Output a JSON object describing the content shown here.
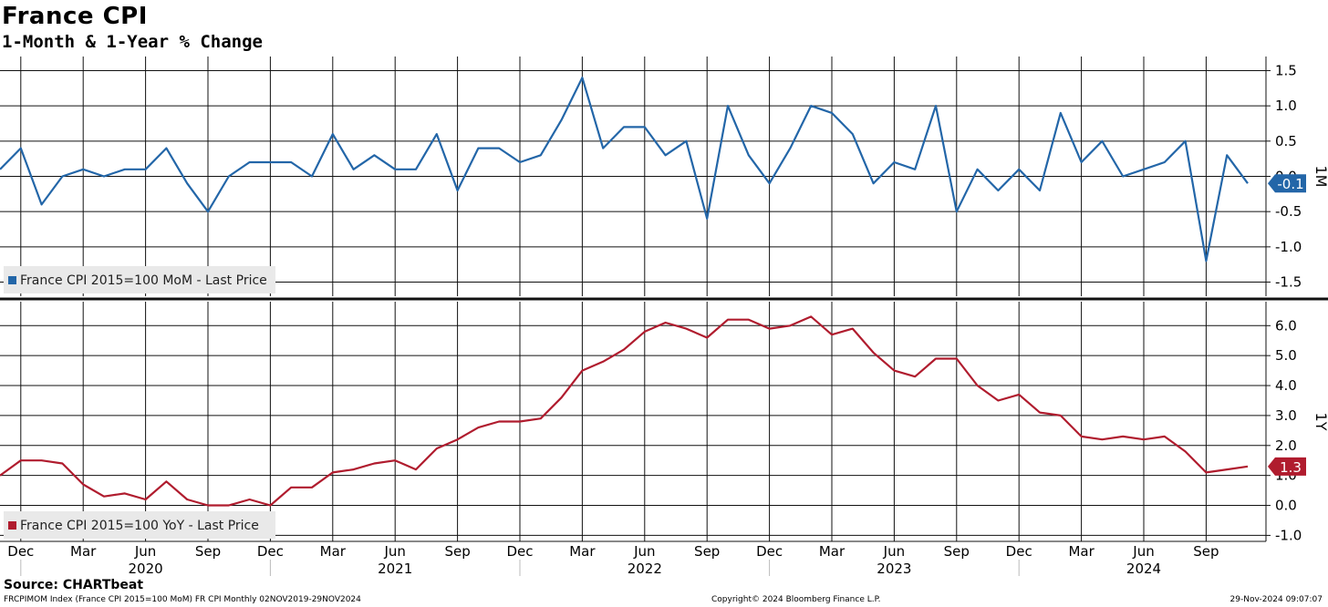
{
  "title": "France CPI",
  "subtitle": "1-Month & 1-Year % Change",
  "chart_data": [
    {
      "type": "line",
      "panel": "top",
      "axis_label": "1M",
      "last_value_label": "-0.1",
      "color": "#2366a8",
      "legend": "France CPI 2015=100 MoM - Last Price",
      "legend_position": "bottom-left",
      "grid": true,
      "ylim": [
        -1.7,
        1.7
      ],
      "yticks": [
        "1.5",
        "1.0",
        "0.5",
        "0.0",
        "-0.5",
        "-1.0",
        "-1.5"
      ],
      "ytick_values": [
        1.5,
        1.0,
        0.5,
        0.0,
        -0.5,
        -1.0,
        -1.5
      ],
      "x_start": "2019-11",
      "values": [
        0.1,
        0.4,
        -0.4,
        0.0,
        0.1,
        0.0,
        0.1,
        0.1,
        0.4,
        -0.1,
        -0.5,
        0.0,
        0.2,
        0.2,
        0.2,
        0.0,
        0.6,
        0.1,
        0.3,
        0.1,
        0.1,
        0.6,
        -0.2,
        0.4,
        0.4,
        0.2,
        0.3,
        0.8,
        1.4,
        0.4,
        0.7,
        0.7,
        0.3,
        0.5,
        -0.6,
        1.0,
        0.3,
        -0.1,
        0.4,
        1.0,
        0.9,
        0.6,
        -0.1,
        0.2,
        0.1,
        1.0,
        -0.5,
        0.1,
        -0.2,
        0.1,
        -0.2,
        0.9,
        0.2,
        0.5,
        0.0,
        0.1,
        0.2,
        0.5,
        -1.2,
        0.3,
        -0.1
      ]
    },
    {
      "type": "line",
      "panel": "bottom",
      "axis_label": "1Y",
      "last_value_label": "1.3",
      "color": "#b01c2e",
      "legend": "France CPI 2015=100 YoY - Last Price",
      "legend_position": "bottom-left",
      "grid": true,
      "ylim": [
        -1.2,
        6.8
      ],
      "yticks": [
        "6.0",
        "5.0",
        "4.0",
        "3.0",
        "2.0",
        "1.0",
        "0.0",
        "-1.0"
      ],
      "ytick_values": [
        6,
        5,
        4,
        3,
        2,
        1,
        0,
        -1
      ],
      "x_start": "2019-11",
      "values": [
        1.0,
        1.5,
        1.5,
        1.4,
        0.7,
        0.3,
        0.4,
        0.2,
        0.8,
        0.2,
        0.0,
        0.0,
        0.2,
        0.0,
        0.6,
        0.6,
        1.1,
        1.2,
        1.4,
        1.5,
        1.2,
        1.9,
        2.2,
        2.6,
        2.8,
        2.8,
        2.9,
        3.6,
        4.5,
        4.8,
        5.2,
        5.8,
        6.1,
        5.9,
        5.6,
        6.2,
        6.2,
        5.9,
        6.0,
        6.3,
        5.7,
        5.9,
        5.1,
        4.5,
        4.3,
        4.9,
        4.9,
        4.0,
        3.5,
        3.7,
        3.1,
        3.0,
        2.3,
        2.2,
        2.3,
        2.2,
        2.3,
        1.8,
        1.1,
        1.2,
        1.3
      ]
    }
  ],
  "x_axis": {
    "month_ticks": [
      {
        "label": "Dec",
        "date": "2019-12"
      },
      {
        "label": "Mar",
        "date": "2020-03"
      },
      {
        "label": "Jun",
        "date": "2020-06"
      },
      {
        "label": "Sep",
        "date": "2020-09"
      },
      {
        "label": "Dec",
        "date": "2020-12"
      },
      {
        "label": "Mar",
        "date": "2021-03"
      },
      {
        "label": "Jun",
        "date": "2021-06"
      },
      {
        "label": "Sep",
        "date": "2021-09"
      },
      {
        "label": "Dec",
        "date": "2021-12"
      },
      {
        "label": "Mar",
        "date": "2022-03"
      },
      {
        "label": "Jun",
        "date": "2022-06"
      },
      {
        "label": "Sep",
        "date": "2022-09"
      },
      {
        "label": "Dec",
        "date": "2022-12"
      },
      {
        "label": "Mar",
        "date": "2023-03"
      },
      {
        "label": "Jun",
        "date": "2023-06"
      },
      {
        "label": "Sep",
        "date": "2023-09"
      },
      {
        "label": "Dec",
        "date": "2023-12"
      },
      {
        "label": "Mar",
        "date": "2024-03"
      },
      {
        "label": "Jun",
        "date": "2024-06"
      },
      {
        "label": "Sep",
        "date": "2024-09"
      }
    ],
    "year_labels": [
      {
        "label": "2020",
        "date": "2020-06"
      },
      {
        "label": "2021",
        "date": "2021-06"
      },
      {
        "label": "2022",
        "date": "2022-06"
      },
      {
        "label": "2023",
        "date": "2023-06"
      },
      {
        "label": "2024",
        "date": "2024-06"
      }
    ]
  },
  "source": "Source: CHARTbeat",
  "footer": {
    "left": "FRCPIMOM Index (France CPI 2015=100 MoM) FR CPI  Monthly 02NOV2019-29NOV2024",
    "middle": "Copyright© 2024 Bloomberg Finance L.P.",
    "right": "29-Nov-2024 09:07:07"
  }
}
